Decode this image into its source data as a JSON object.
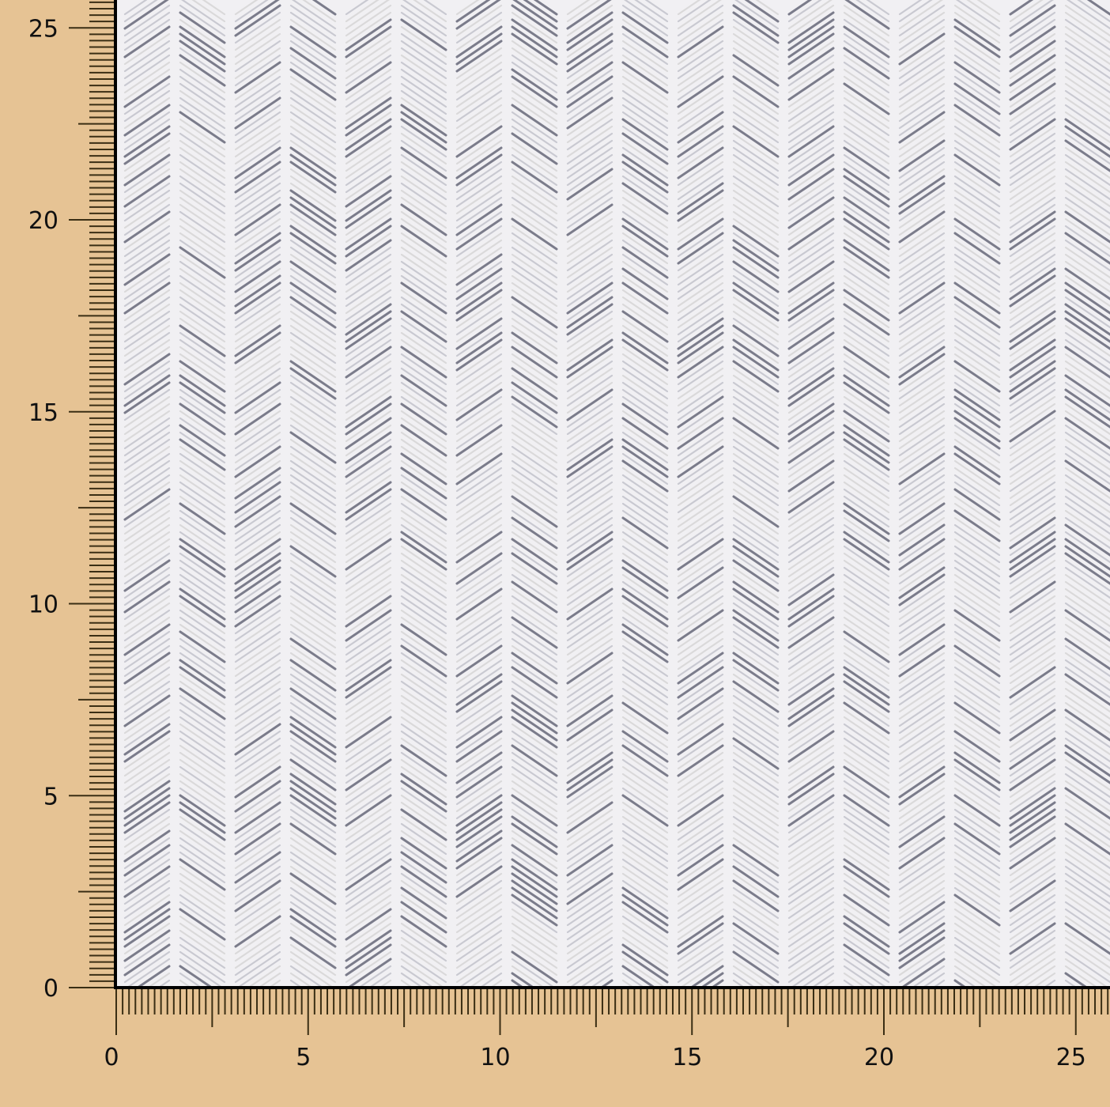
{
  "colors": {
    "background": "#e6c394",
    "fabric": "#f1f0f3",
    "stripe_dark": "#6f7080",
    "stripe_mid": "#a9abb6",
    "stripe_light": "#c9c7c6",
    "tick": "#3a2e14",
    "border": "#000000"
  },
  "ruler": {
    "x_labels": [
      "0",
      "5",
      "10",
      "15",
      "20",
      "25"
    ],
    "y_labels": [
      "0",
      "5",
      "10",
      "15",
      "20",
      "25"
    ],
    "minor_per_unit": 6
  },
  "fabric": {
    "pattern": "herringbone chevron"
  }
}
